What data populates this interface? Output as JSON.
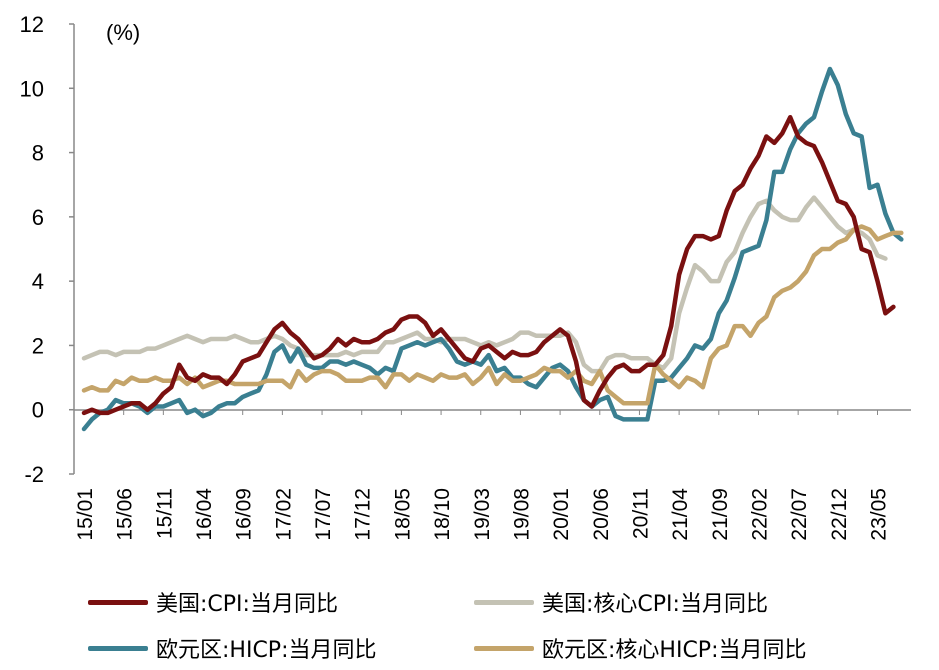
{
  "chart_data": {
    "type": "line",
    "unit_label": "(%)",
    "y_ticks": [
      12,
      10,
      8,
      6,
      4,
      2,
      0,
      -2
    ],
    "ylim": [
      -2,
      12
    ],
    "x_tick_labels": [
      "15/01",
      "15/06",
      "15/11",
      "16/04",
      "16/09",
      "17/02",
      "17/07",
      "17/12",
      "18/05",
      "18/10",
      "19/03",
      "19/08",
      "20/01",
      "20/06",
      "20/11",
      "21/04",
      "21/09",
      "22/02",
      "22/07",
      "22/12",
      "23/05"
    ],
    "x_range": [
      "2015-01",
      "2023-07"
    ],
    "series": [
      {
        "name": "美国:CPI:当月同比",
        "color": "#7a1010",
        "values": [
          -0.1,
          0,
          -0.1,
          -0.1,
          0,
          0.1,
          0.2,
          0.2,
          0,
          0.2,
          0.5,
          0.7,
          1.4,
          1,
          0.9,
          1.1,
          1,
          1,
          0.8,
          1.1,
          1.5,
          1.6,
          1.7,
          2.1,
          2.5,
          2.7,
          2.4,
          2.2,
          1.9,
          1.6,
          1.7,
          1.9,
          2.2,
          2,
          2.2,
          2.1,
          2.1,
          2.2,
          2.4,
          2.5,
          2.8,
          2.9,
          2.9,
          2.7,
          2.3,
          2.5,
          2.2,
          1.9,
          1.6,
          1.5,
          1.9,
          2,
          1.8,
          1.6,
          1.8,
          1.7,
          1.7,
          1.8,
          2.1,
          2.3,
          2.5,
          2.3,
          1.5,
          0.3,
          0.1,
          0.6,
          1,
          1.3,
          1.4,
          1.2,
          1.2,
          1.4,
          1.4,
          1.7,
          2.6,
          4.2,
          5,
          5.4,
          5.4,
          5.3,
          5.4,
          6.2,
          6.8,
          7,
          7.5,
          7.9,
          8.5,
          8.3,
          8.6,
          9.1,
          8.5,
          8.3,
          8.2,
          7.7,
          7.1,
          6.5,
          6.4,
          6,
          5,
          4.9,
          4,
          3,
          3.2
        ],
        "start_index": 0
      },
      {
        "name": "美国:核心CPI:当月同比",
        "color": "#c4c2b4",
        "values": [
          1.6,
          1.7,
          1.8,
          1.8,
          1.7,
          1.8,
          1.8,
          1.8,
          1.9,
          1.9,
          2,
          2.1,
          2.2,
          2.3,
          2.2,
          2.1,
          2.2,
          2.2,
          2.2,
          2.3,
          2.2,
          2.1,
          2.1,
          2.2,
          2.3,
          2.2,
          2,
          1.9,
          1.7,
          1.7,
          1.7,
          1.7,
          1.7,
          1.8,
          1.7,
          1.8,
          1.8,
          1.8,
          2.1,
          2.1,
          2.2,
          2.3,
          2.4,
          2.2,
          2.2,
          2.1,
          2.2,
          2.2,
          2.2,
          2.1,
          2,
          2.1,
          2,
          2.1,
          2.2,
          2.4,
          2.4,
          2.3,
          2.3,
          2.3,
          2.3,
          2.4,
          2.1,
          1.4,
          1.2,
          1.2,
          1.6,
          1.7,
          1.7,
          1.6,
          1.6,
          1.6,
          1.4,
          1.3,
          1.6,
          3,
          3.8,
          4.5,
          4.3,
          4,
          4,
          4.6,
          4.9,
          5.5,
          6,
          6.4,
          6.5,
          6.2,
          6,
          5.9,
          5.9,
          6.3,
          6.6,
          6.3,
          6,
          5.7,
          5.5,
          5.6,
          5.5,
          5.3,
          4.8,
          4.7
        ],
        "start_index": 0
      },
      {
        "name": "欧元区:HICP:当月同比",
        "color": "#3a7f91",
        "values": [
          -0.6,
          -0.3,
          -0.1,
          0,
          0.3,
          0.2,
          0.2,
          0.1,
          -0.1,
          0.1,
          0.1,
          0.2,
          0.3,
          -0.1,
          0,
          -0.2,
          -0.1,
          0.1,
          0.2,
          0.2,
          0.4,
          0.5,
          0.6,
          1.1,
          1.8,
          2,
          1.5,
          1.9,
          1.4,
          1.3,
          1.3,
          1.5,
          1.5,
          1.4,
          1.5,
          1.4,
          1.3,
          1.1,
          1.3,
          1.2,
          1.9,
          2,
          2.1,
          2,
          2.1,
          2.2,
          1.9,
          1.5,
          1.4,
          1.5,
          1.4,
          1.7,
          1.2,
          1.3,
          1,
          1,
          0.8,
          0.7,
          1,
          1.3,
          1.4,
          1.2,
          0.7,
          0.3,
          0.1,
          0.3,
          0.4,
          -0.2,
          -0.3,
          -0.3,
          -0.3,
          -0.3,
          0.9,
          0.9,
          1,
          1.3,
          1.6,
          2,
          1.9,
          2.2,
          3,
          3.4,
          4.1,
          4.9,
          5,
          5.1,
          5.9,
          7.4,
          7.4,
          8.1,
          8.6,
          8.9,
          9.1,
          9.9,
          10.6,
          10.1,
          9.2,
          8.6,
          8.5,
          6.9,
          7,
          6.1,
          5.5,
          5.3
        ],
        "start_index": 0
      },
      {
        "name": "欧元区:核心HICP:当月同比",
        "color": "#c4a46a",
        "values": [
          0.6,
          0.7,
          0.6,
          0.6,
          0.9,
          0.8,
          1,
          0.9,
          0.9,
          1,
          0.9,
          0.9,
          1,
          0.8,
          1,
          0.7,
          0.8,
          0.9,
          0.9,
          0.8,
          0.8,
          0.8,
          0.8,
          0.9,
          0.9,
          0.9,
          0.7,
          1.2,
          0.9,
          1.1,
          1.2,
          1.2,
          1.1,
          0.9,
          0.9,
          0.9,
          1,
          1,
          0.7,
          1.1,
          1.1,
          0.9,
          1.1,
          1,
          0.9,
          1.1,
          1,
          1,
          1.1,
          0.8,
          1,
          1.3,
          0.8,
          1.1,
          0.9,
          0.9,
          1,
          1.1,
          1.3,
          1.2,
          1.2,
          1,
          1.2,
          0.9,
          0.8,
          1.2,
          0.6,
          0.4,
          0.2,
          0.2,
          0.2,
          0.2,
          1.4,
          1.1,
          0.9,
          0.7,
          1,
          0.9,
          0.7,
          1.6,
          1.9,
          2,
          2.6,
          2.6,
          2.3,
          2.7,
          2.9,
          3.5,
          3.7,
          3.8,
          4,
          4.3,
          4.8,
          5,
          5,
          5.2,
          5.3,
          5.6,
          5.7,
          5.6,
          5.3,
          5.4,
          5.5,
          5.5
        ],
        "start_index": 0
      }
    ],
    "legend": [
      {
        "label": "美国:CPI:当月同比",
        "color": "#7a1010"
      },
      {
        "label": "美国:核心CPI:当月同比",
        "color": "#c4c2b4"
      },
      {
        "label": "欧元区:HICP:当月同比",
        "color": "#3a7f91"
      },
      {
        "label": "欧元区:核心HICP:当月同比",
        "color": "#c4a46a"
      }
    ]
  }
}
